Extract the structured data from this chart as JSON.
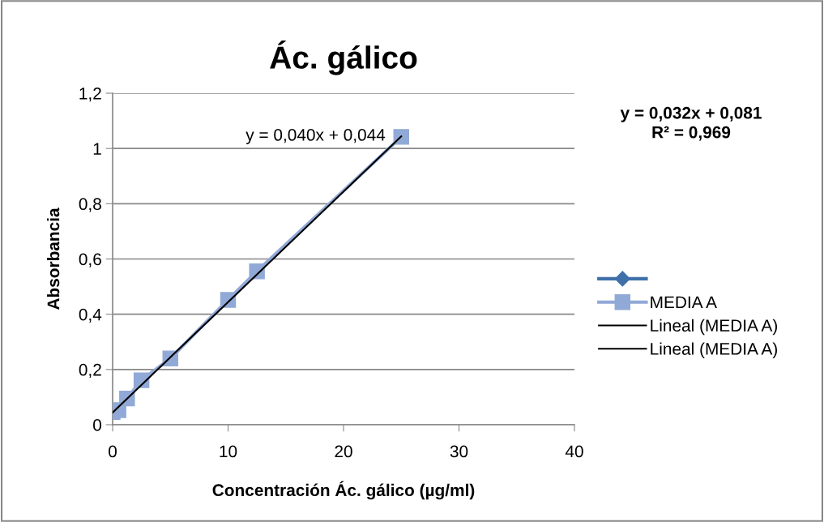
{
  "chart_data": {
    "type": "line",
    "title": "Ác. gálico",
    "xlabel": "Concentración Ác. gálico (µg/ml)",
    "ylabel": "Absorbancia",
    "series": [
      {
        "color": "#3f70aa",
        "marker": "diamond"
      },
      {
        "name": "MEDIA A",
        "color": "#91a9d6",
        "marker": "square",
        "x": [
          0,
          0.5,
          1.25,
          2.5,
          5,
          10,
          12.5,
          25
        ],
        "values": [
          0.046,
          0.053,
          0.095,
          0.161,
          0.24,
          0.452,
          0.555,
          1.042
        ]
      },
      {
        "name": "Lineal (MEDIA A)",
        "color": "#000000",
        "marker": "none",
        "x": [
          0,
          25
        ],
        "values": [
          0.044,
          1.044
        ]
      },
      {
        "name": "Lineal (MEDIA A)",
        "color": "#000000",
        "marker": "none"
      }
    ],
    "annotations": [
      {
        "text": "y = 0,040x + 0,044",
        "x": 25,
        "y": 1.044
      },
      "y = 0,032x + 0,081\nR² = 0,969"
    ],
    "xlim": [
      0,
      40
    ],
    "xticks": [
      0,
      10,
      20,
      30,
      40
    ],
    "ylim": [
      0,
      1.2
    ],
    "yticks": [
      0,
      {
        "value": 0.2,
        "label": "0,2"
      },
      {
        "value": 0.4,
        "label": "0,4"
      },
      {
        "value": 0.6,
        "label": "0,6"
      },
      {
        "value": 0.8,
        "label": "0,8"
      },
      1,
      {
        "value": 1.2,
        "label": "1,2"
      }
    ],
    "grid": "y",
    "legend": "right"
  }
}
